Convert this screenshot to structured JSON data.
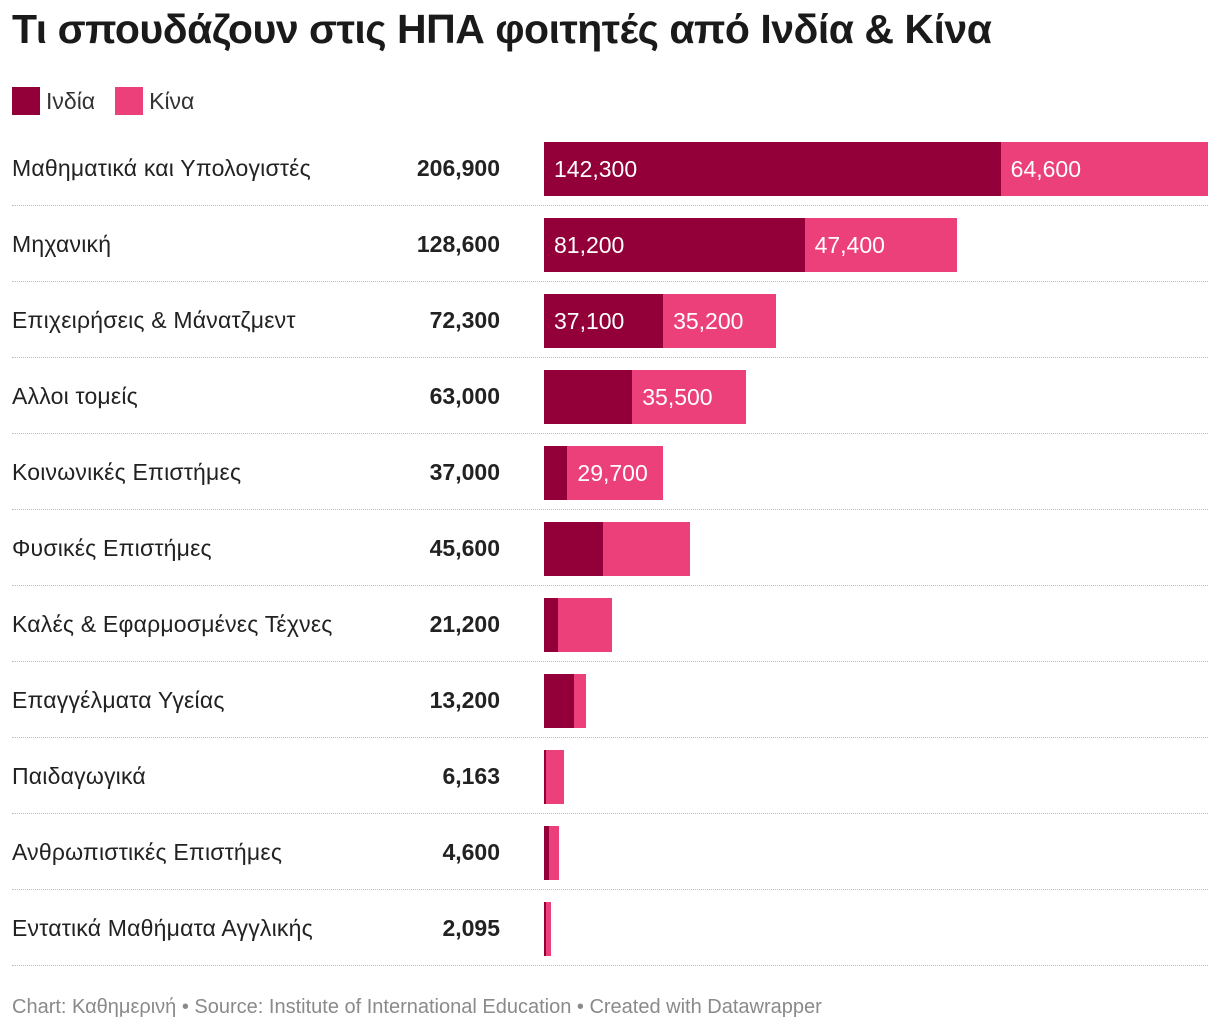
{
  "title": "Τι σπουδάζουν στις ΗΠΑ φοιτητές από Ινδία & Κίνα",
  "footer": "Chart: Καθημερινή • Source: Institute of International Education • Created with Datawrapper",
  "colors": {
    "india": "#930039",
    "china": "#ec407a"
  },
  "legend": [
    {
      "name": "Ινδία",
      "color": "#930039"
    },
    {
      "name": "Κίνα",
      "color": "#ec407a"
    }
  ],
  "chart_data": {
    "type": "bar",
    "orientation": "horizontal",
    "stacked": true,
    "legend_position": "top-left",
    "categories": [
      "Μαθηματικά και Υπολογιστές",
      "Μηχανική",
      "Επιχειρήσεις & Μάνατζμεντ",
      "Αλλοι τομείς",
      "Κοινωνικές Επιστήμες",
      "Φυσικές Επιστήμες",
      "Καλές & Εφαρμοσμένες Τέχνες",
      "Επαγγέλματα Υγείας",
      "Παιδαγωγικά",
      "Ανθρωπιστικές Επιστήμες",
      "Εντατικά Μαθήματα Αγγλικής"
    ],
    "totals": [
      "206,900",
      "128,600",
      "72,300",
      "63,000",
      "37,000",
      "45,600",
      "21,200",
      "13,200",
      "6,163",
      "4,600",
      "2,095"
    ],
    "series": [
      {
        "name": "Ινδία",
        "values": [
          142300,
          81200,
          37100,
          27500,
          7300,
          18300,
          4500,
          9400,
          663,
          1500,
          695
        ],
        "labels": [
          "142,300",
          "81,200",
          "37,100",
          "",
          "",
          "",
          "",
          "",
          "",
          "",
          ""
        ]
      },
      {
        "name": "Κίνα",
        "values": [
          64600,
          47400,
          35200,
          35500,
          29700,
          27300,
          16700,
          3800,
          5500,
          3100,
          1400
        ],
        "labels": [
          "64,600",
          "47,400",
          "35,200",
          "35,500",
          "29,700",
          "",
          "",
          "",
          "",
          "",
          ""
        ]
      }
    ],
    "xlim": [
      0,
      206900
    ],
    "grid": false
  }
}
